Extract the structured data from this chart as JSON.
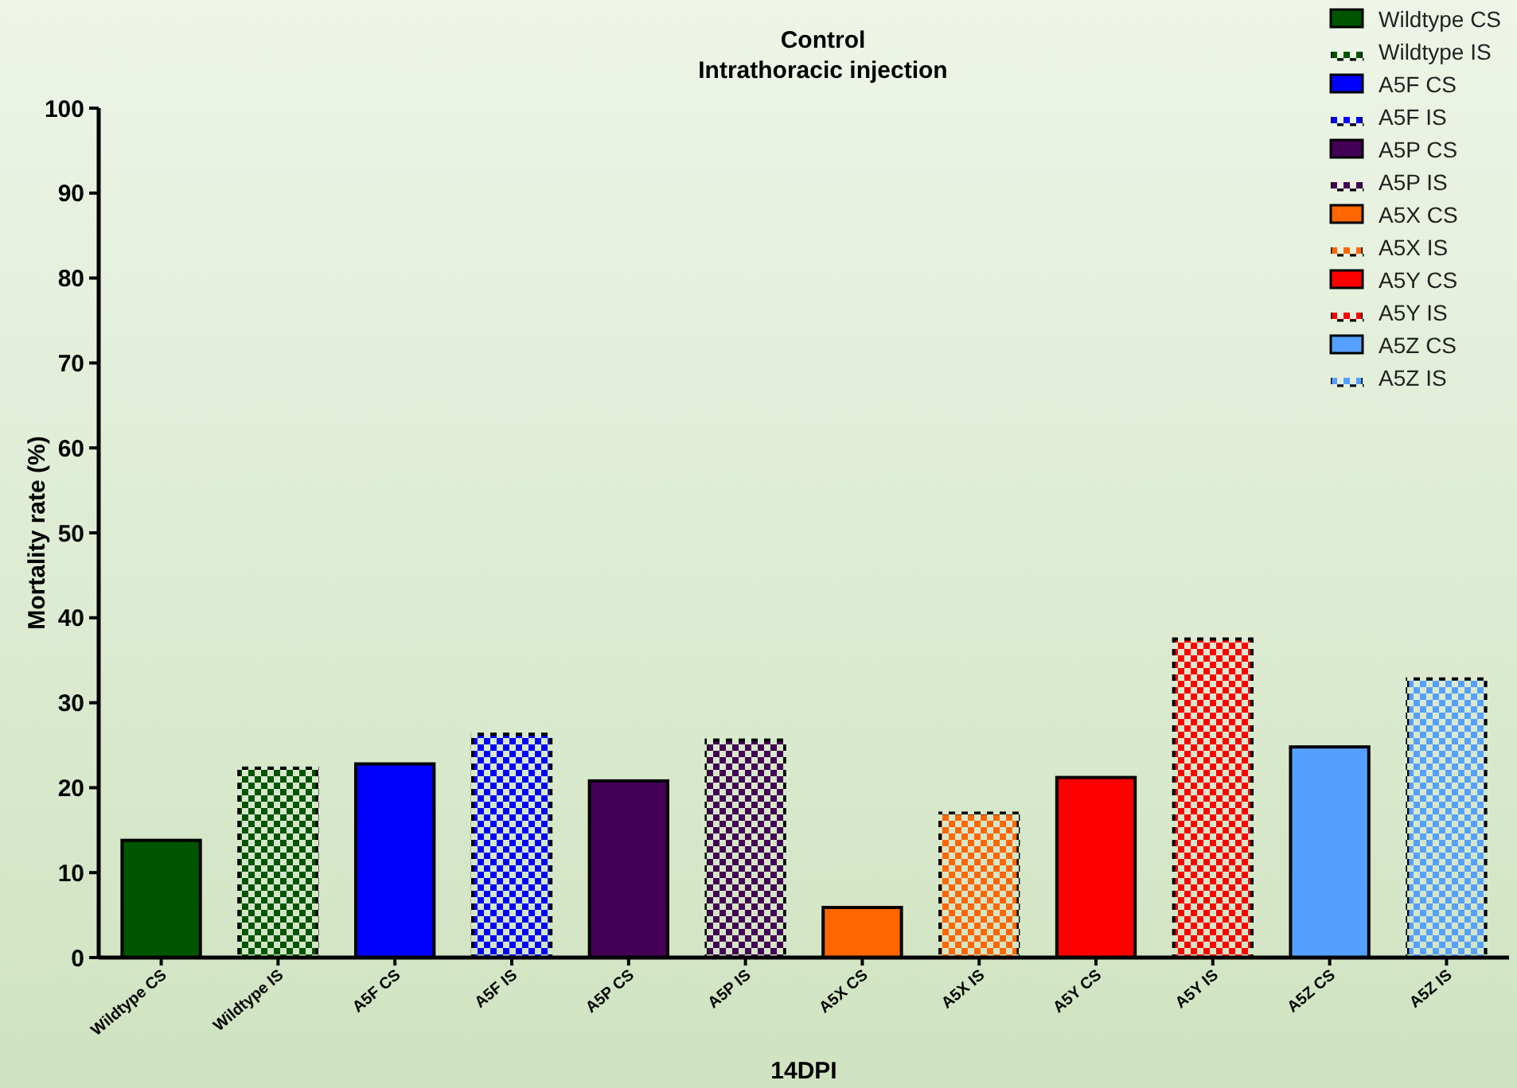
{
  "chart_data": {
    "type": "bar",
    "title": "Control",
    "subtitle": "Intrathoracic injection",
    "xlabel": "14DPI",
    "ylabel": "Mortality rate (%)",
    "categories": [
      "Wildtype CS",
      "Wildtype IS",
      "A5F CS",
      "A5F IS",
      "A5P CS",
      "A5P IS",
      "A5X CS",
      "A5X IS",
      "A5Y CS",
      "A5Y IS",
      "A5Z CS",
      "A5Z IS"
    ],
    "series": [
      {
        "name": "Wildtype CS",
        "color": "#005500",
        "values": [
          13.8,
          null,
          null,
          null,
          null,
          null,
          null,
          null,
          null,
          null,
          null,
          null
        ]
      },
      {
        "name": "Wildtype IS",
        "color": "#005500",
        "values": [
          null,
          22.3,
          null,
          null,
          null,
          null,
          null,
          null,
          null,
          null,
          null,
          null
        ]
      },
      {
        "name": "A5F CS",
        "color": "#0000ff",
        "values": [
          null,
          null,
          22.8,
          null,
          null,
          null,
          null,
          null,
          null,
          null,
          null,
          null
        ]
      },
      {
        "name": "A5F IS",
        "color": "#0000ff",
        "values": [
          null,
          null,
          null,
          26.3,
          null,
          null,
          null,
          null,
          null,
          null,
          null,
          null
        ]
      },
      {
        "name": "A5P CS",
        "color": "#440055",
        "values": [
          null,
          null,
          null,
          null,
          20.8,
          null,
          null,
          null,
          null,
          null,
          null,
          null
        ]
      },
      {
        "name": "A5P IS",
        "color": "#440055",
        "values": [
          null,
          null,
          null,
          null,
          null,
          25.6,
          null,
          null,
          null,
          null,
          null,
          null
        ]
      },
      {
        "name": "A5X CS",
        "color": "#ff6600",
        "values": [
          null,
          null,
          null,
          null,
          null,
          null,
          5.9,
          null,
          null,
          null,
          null,
          null
        ]
      },
      {
        "name": "A5X IS",
        "color": "#ff6600",
        "values": [
          null,
          null,
          null,
          null,
          null,
          null,
          null,
          17.0,
          null,
          null,
          null,
          null
        ]
      },
      {
        "name": "A5Y CS",
        "color": "#ff0000",
        "values": [
          null,
          null,
          null,
          null,
          null,
          null,
          null,
          null,
          21.2,
          null,
          null,
          null
        ]
      },
      {
        "name": "A5Y IS",
        "color": "#ff0000",
        "values": [
          null,
          null,
          null,
          null,
          null,
          null,
          null,
          null,
          null,
          37.5,
          null,
          null
        ]
      },
      {
        "name": "A5Z CS",
        "color": "#55a0ff",
        "values": [
          null,
          null,
          null,
          null,
          null,
          null,
          null,
          null,
          null,
          null,
          24.8,
          null
        ]
      },
      {
        "name": "A5Z IS",
        "color": "#55a0ff",
        "values": [
          null,
          null,
          null,
          null,
          null,
          null,
          null,
          null,
          null,
          null,
          null,
          32.8
        ]
      }
    ],
    "ylim": [
      0,
      100
    ],
    "yticks": [
      0,
      10,
      20,
      30,
      40,
      50,
      60,
      70,
      80,
      90,
      100
    ],
    "grid": false,
    "legend": "top right"
  }
}
